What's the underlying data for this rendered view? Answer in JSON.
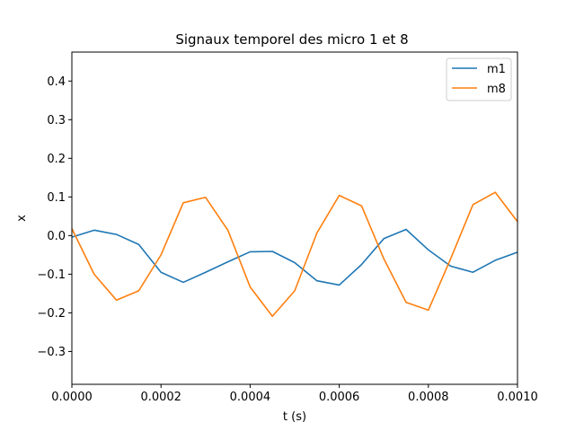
{
  "chart_data": {
    "type": "line",
    "title": "Signaux temporel des micro 1 et 8",
    "xlabel": "t (s)",
    "ylabel": "x",
    "xlim": [
      0.0,
      0.001
    ],
    "ylim": [
      -0.385,
      0.475
    ],
    "x_ticks": [
      "0.0000",
      "0.0002",
      "0.0004",
      "0.0006",
      "0.0008",
      "0.0010"
    ],
    "y_ticks": [
      "−0.3",
      "−0.2",
      "−0.1",
      "0.0",
      "0.1",
      "0.2",
      "0.3",
      "0.4"
    ],
    "legend_position": "top-right",
    "grid": false,
    "x": [
      0.0,
      5e-05,
      0.0001,
      0.00015,
      0.0002,
      0.00025,
      0.0003,
      0.00035,
      0.0004,
      0.00045,
      0.0005,
      0.00055,
      0.0006,
      0.00065,
      0.0007,
      0.00075,
      0.0008,
      0.00085,
      0.0009,
      0.00095,
      0.001
    ],
    "series": [
      {
        "name": "m1",
        "color": "#1f77b4",
        "values": [
          -0.004,
          0.014,
          0.003,
          -0.023,
          -0.095,
          -0.121,
          -0.095,
          -0.068,
          -0.042,
          -0.041,
          -0.07,
          -0.117,
          -0.128,
          -0.075,
          -0.008,
          0.016,
          -0.037,
          -0.079,
          -0.095,
          -0.064,
          -0.043
        ]
      },
      {
        "name": "m8",
        "color": "#ff7f0e",
        "values": [
          0.018,
          -0.1,
          -0.167,
          -0.143,
          -0.05,
          0.085,
          0.099,
          0.014,
          -0.133,
          -0.209,
          -0.143,
          0.007,
          0.104,
          0.077,
          -0.06,
          -0.173,
          -0.193,
          -0.06,
          0.08,
          0.112,
          0.036
        ]
      }
    ]
  }
}
